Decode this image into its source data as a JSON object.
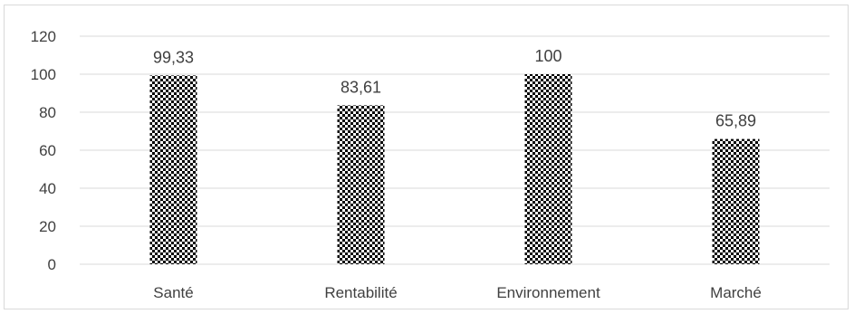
{
  "chart_data": {
    "type": "bar",
    "categories": [
      "Santé",
      "Rentabilité",
      "Environnement",
      "Marché"
    ],
    "values": [
      99.33,
      83.61,
      100,
      65.89
    ],
    "data_labels": [
      "99,33",
      "83,61",
      "100",
      "65,89"
    ],
    "y_ticks": [
      "0",
      "20",
      "40",
      "60",
      "80",
      "100",
      "120"
    ],
    "ylim": [
      0,
      120
    ],
    "grid": true,
    "legend": "none",
    "bar_pattern": "checkerboard",
    "colors": {
      "bar_dark": "#000000",
      "bar_light": "#ffffff",
      "grid": "#d9d9d9",
      "text": "#404040"
    }
  }
}
